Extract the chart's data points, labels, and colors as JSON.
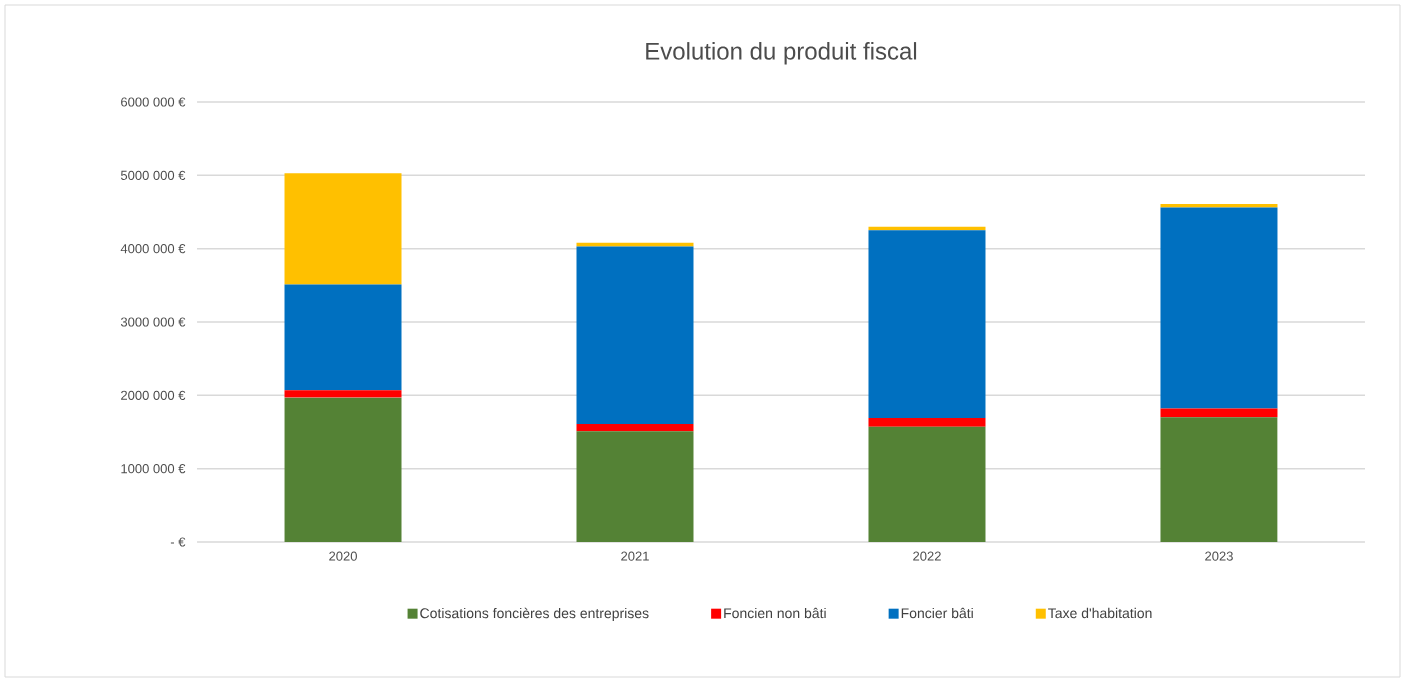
{
  "chart_data": {
    "type": "bar",
    "title": "Evolution du produit fiscal",
    "stacked": true,
    "categories": [
      "2020",
      "2021",
      "2022",
      "2023"
    ],
    "series": [
      {
        "name": "Cotisations foncières des entreprises",
        "color": "#548235",
        "values": [
          1970000,
          1510000,
          1570000,
          1700000
        ]
      },
      {
        "name": "Foncien non bâti",
        "color": "#ff0000",
        "values": [
          100000,
          100000,
          120000,
          120000
        ]
      },
      {
        "name": "Foncier bâti",
        "color": "#0070c0",
        "values": [
          1440000,
          2420000,
          2560000,
          2740000
        ]
      },
      {
        "name": "Taxe d'habitation",
        "color": "#ffc000",
        "values": [
          1520000,
          50000,
          50000,
          50000
        ]
      }
    ],
    "ylim": [
      0,
      6000000
    ],
    "yticks": [
      {
        "value": 0,
        "label": "-   €"
      },
      {
        "value": 1000000,
        "label": "1000 000 €"
      },
      {
        "value": 2000000,
        "label": "2000 000 €"
      },
      {
        "value": 3000000,
        "label": "3000 000 €"
      },
      {
        "value": 4000000,
        "label": "4000 000 €"
      },
      {
        "value": 5000000,
        "label": "5000 000 €"
      },
      {
        "value": 6000000,
        "label": "6000 000 €"
      }
    ],
    "grid": "y",
    "legend": "bottom"
  }
}
